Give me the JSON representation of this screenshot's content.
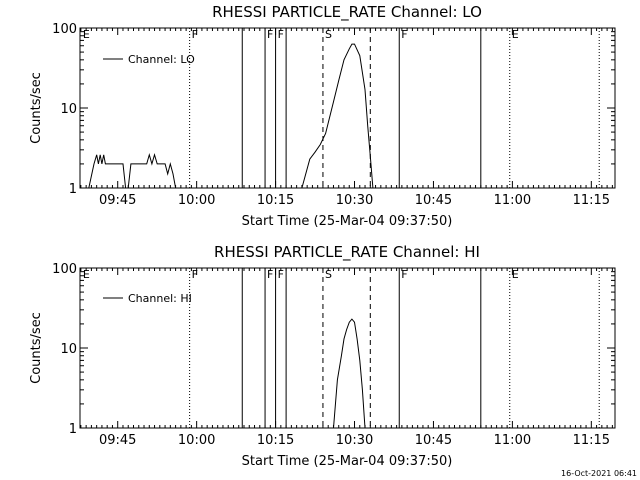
{
  "footer": {
    "timestamp": "16-Oct-2021 06:41"
  },
  "chart_data": [
    {
      "type": "line",
      "title": "RHESSI PARTICLE_RATE Channel: LO",
      "xlabel": "Start Time (25-Mar-04 09:37:50)",
      "ylabel": "Counts/sec",
      "yscale": "log",
      "xlim": [
        "09:37:50",
        "11:19:30"
      ],
      "ylim": [
        1,
        100
      ],
      "y_ticks": [
        {
          "value": 1,
          "label": "1"
        },
        {
          "value": 10,
          "label": "10"
        },
        {
          "value": 100,
          "label": "100"
        }
      ],
      "x_ticks": [
        {
          "time": "09:45",
          "label": "09:45"
        },
        {
          "time": "10:00",
          "label": "10:00"
        },
        {
          "time": "10:15",
          "label": "10:15"
        },
        {
          "time": "10:30",
          "label": "10:30"
        },
        {
          "time": "10:45",
          "label": "10:45"
        },
        {
          "time": "11:00",
          "label": "11:00"
        },
        {
          "time": "11:15",
          "label": "11:15"
        }
      ],
      "legend": {
        "position": "top-left",
        "entries": [
          "Channel: LO"
        ]
      },
      "markers": [
        {
          "time": "09:38:00",
          "style": "none",
          "label": "E"
        },
        {
          "time": "09:58:40",
          "style": "dotted",
          "label": "F"
        },
        {
          "time": "10:08:40",
          "style": "solid",
          "label": ""
        },
        {
          "time": "10:13:00",
          "style": "solid",
          "label": "F"
        },
        {
          "time": "10:15:00",
          "style": "solid",
          "label": "F"
        },
        {
          "time": "10:17:00",
          "style": "solid",
          "label": ""
        },
        {
          "time": "10:24:00",
          "style": "dashed",
          "label": "S"
        },
        {
          "time": "10:33:00",
          "style": "dashed",
          "label": ""
        },
        {
          "time": "10:38:30",
          "style": "solid",
          "label": "F"
        },
        {
          "time": "10:54:00",
          "style": "solid",
          "label": ""
        },
        {
          "time": "10:59:30",
          "style": "dotted",
          "label": "E"
        },
        {
          "time": "11:16:30",
          "style": "dotted",
          "label": ""
        }
      ],
      "series": [
        {
          "name": "Channel: LO",
          "points": [
            [
              "09:39:30",
              1
            ],
            [
              "09:40:30",
              2
            ],
            [
              "09:41:00",
              2.6
            ],
            [
              "09:41:20",
              2
            ],
            [
              "09:41:40",
              2.6
            ],
            [
              "09:42:00",
              2
            ],
            [
              "09:42:20",
              2.6
            ],
            [
              "09:42:40",
              2
            ],
            [
              "09:46:00",
              2
            ],
            [
              "09:46:30",
              1
            ],
            [
              "09:47:00",
              1
            ],
            [
              "09:47:30",
              2
            ],
            [
              "09:50:30",
              2
            ],
            [
              "09:51:00",
              2.6
            ],
            [
              "09:51:30",
              2
            ],
            [
              "09:52:00",
              2.6
            ],
            [
              "09:52:30",
              2
            ],
            [
              "09:54:00",
              2
            ],
            [
              "09:54:30",
              1.5
            ],
            [
              "09:55:00",
              2
            ],
            [
              "09:55:30",
              1.5
            ],
            [
              "09:56:00",
              1
            ],
            [
              "09:58:40",
              1
            ]
          ]
        },
        {
          "name": "Channel: LO",
          "points": [
            [
              "10:20:00",
              1
            ],
            [
              "10:21:30",
              2.3
            ],
            [
              "10:22:30",
              2.8
            ],
            [
              "10:23:30",
              3.5
            ],
            [
              "10:24:30",
              4.8
            ],
            [
              "10:25:00",
              6.5
            ],
            [
              "10:26:00",
              12
            ],
            [
              "10:27:00",
              22
            ],
            [
              "10:28:00",
              40
            ],
            [
              "10:29:00",
              55
            ],
            [
              "10:29:30",
              63
            ],
            [
              "10:30:00",
              63
            ],
            [
              "10:31:00",
              45
            ],
            [
              "10:32:00",
              17
            ],
            [
              "10:32:30",
              6
            ],
            [
              "10:33:00",
              2.5
            ],
            [
              "10:33:30",
              1
            ]
          ]
        }
      ]
    },
    {
      "type": "line",
      "title": "RHESSI PARTICLE_RATE Channel: HI",
      "xlabel": "Start Time (25-Mar-04 09:37:50)",
      "ylabel": "Counts/sec",
      "yscale": "log",
      "xlim": [
        "09:37:50",
        "11:19:30"
      ],
      "ylim": [
        1,
        100
      ],
      "y_ticks": [
        {
          "value": 1,
          "label": "1"
        },
        {
          "value": 10,
          "label": "10"
        },
        {
          "value": 100,
          "label": "100"
        }
      ],
      "x_ticks": [
        {
          "time": "09:45",
          "label": "09:45"
        },
        {
          "time": "10:00",
          "label": "10:00"
        },
        {
          "time": "10:15",
          "label": "10:15"
        },
        {
          "time": "10:30",
          "label": "10:30"
        },
        {
          "time": "10:45",
          "label": "10:45"
        },
        {
          "time": "11:00",
          "label": "11:00"
        },
        {
          "time": "11:15",
          "label": "11:15"
        }
      ],
      "legend": {
        "position": "top-left",
        "entries": [
          "Channel: HI"
        ]
      },
      "markers": [
        {
          "time": "09:38:00",
          "style": "none",
          "label": "E"
        },
        {
          "time": "09:58:40",
          "style": "dotted",
          "label": "F"
        },
        {
          "time": "10:08:40",
          "style": "solid",
          "label": ""
        },
        {
          "time": "10:13:00",
          "style": "solid",
          "label": "F"
        },
        {
          "time": "10:15:00",
          "style": "solid",
          "label": "F"
        },
        {
          "time": "10:17:00",
          "style": "solid",
          "label": ""
        },
        {
          "time": "10:24:00",
          "style": "dashed",
          "label": "S"
        },
        {
          "time": "10:33:00",
          "style": "dashed",
          "label": ""
        },
        {
          "time": "10:38:30",
          "style": "solid",
          "label": "F"
        },
        {
          "time": "10:54:00",
          "style": "solid",
          "label": ""
        },
        {
          "time": "10:59:30",
          "style": "dotted",
          "label": "E"
        },
        {
          "time": "11:16:30",
          "style": "dotted",
          "label": ""
        }
      ],
      "series": [
        {
          "name": "Channel: HI",
          "points": [
            [
              "10:26:00",
              1
            ],
            [
              "10:26:45",
              4
            ],
            [
              "10:27:30",
              8
            ],
            [
              "10:28:00",
              13
            ],
            [
              "10:28:30",
              17
            ],
            [
              "10:29:00",
              21
            ],
            [
              "10:29:30",
              23
            ],
            [
              "10:30:00",
              21
            ],
            [
              "10:30:30",
              13
            ],
            [
              "10:31:00",
              7
            ],
            [
              "10:31:30",
              3
            ],
            [
              "10:32:00",
              1
            ]
          ]
        }
      ]
    }
  ]
}
